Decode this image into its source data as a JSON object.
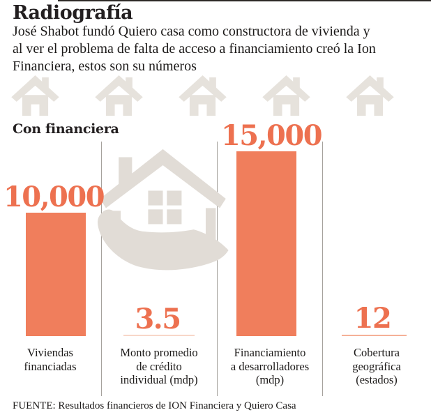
{
  "header": {
    "title": "Radiografía",
    "subtitle_lines": [
      "José Shabot fundó Quiero casa como constructora de vivienda y",
      "al ver el problema de falta de acceso a financiamiento creó la Ion",
      "Financiera, estos son su números"
    ]
  },
  "section_label": "Con financiera",
  "icons": {
    "house": "house-icon",
    "hand_house": "hand-holding-house-icon",
    "house_row_count": 5
  },
  "chart_data": {
    "type": "bar",
    "title": "Con financiera",
    "categories": [
      "Viviendas financiadas",
      "Monto promedio de crédito individual (mdp)",
      "Financiamiento a desarrolladores (mdp)",
      "Cobertura geográfica (estados)"
    ],
    "label_lines": [
      [
        "Viviendas",
        "financiadas"
      ],
      [
        "Monto promedio",
        "de crédito",
        "individual (mdp)"
      ],
      [
        "Financiamiento",
        "a desarrolladores",
        "(mdp)"
      ],
      [
        "Cobertura",
        "geográfica",
        "(estados)"
      ]
    ],
    "values": [
      10000,
      3.5,
      15000,
      12
    ],
    "value_labels": [
      "10,000",
      "3.5",
      "15,000",
      "12"
    ],
    "xlabel": "",
    "ylabel": "",
    "ylim": [
      0,
      15000
    ],
    "grid": false,
    "legend": false
  },
  "colors": {
    "accent_number": "#ed7150",
    "bar_large": "#f07e5c",
    "bar_small_credit": "#f8d7c8",
    "bar_small_coverage": "#f5b097",
    "house_gray": "#e6e2dc",
    "hand_gray": "#e1dcd6",
    "divider_gray": "#a6a29d",
    "ink": "#231f20"
  },
  "source": "FUENTE: Resultados financieros de ION Financiera  y Quiero Casa"
}
